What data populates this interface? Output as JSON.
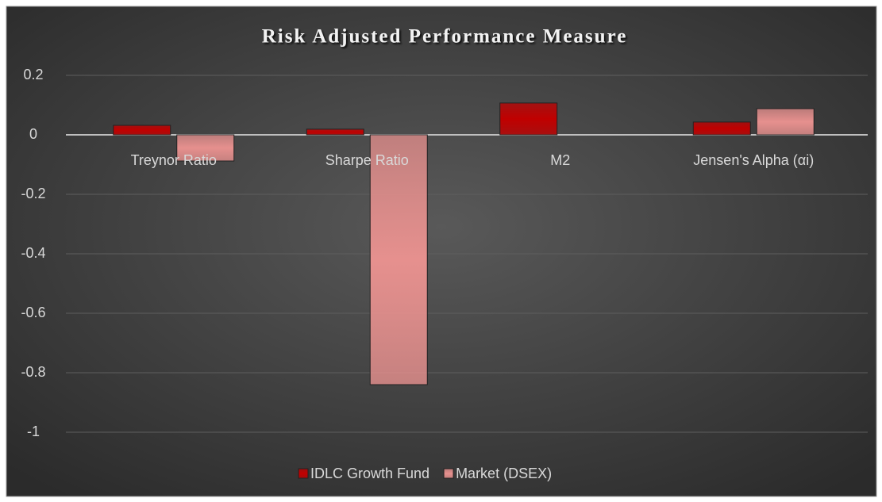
{
  "chart_data": {
    "type": "bar",
    "title": "Risk Adjusted Performance Measure",
    "categories": [
      "Treynor Ratio",
      "Sharpe Ratio",
      "M2",
      "Jensen's Alpha (αi)"
    ],
    "series": [
      {
        "name": "IDLC Growth Fund",
        "color": "#c00000",
        "values": [
          0.032,
          0.019,
          0.107,
          0.043
        ]
      },
      {
        "name": "Market (DSEX)",
        "color": "#e6908e",
        "values": [
          -0.088,
          -0.84,
          0,
          0.088
        ]
      }
    ],
    "ylim": [
      -1,
      0.2
    ],
    "yticks": [
      0.2,
      0,
      -0.2,
      -0.4,
      -0.6,
      -0.8,
      -1
    ],
    "grid": true,
    "legend": "bottom"
  }
}
